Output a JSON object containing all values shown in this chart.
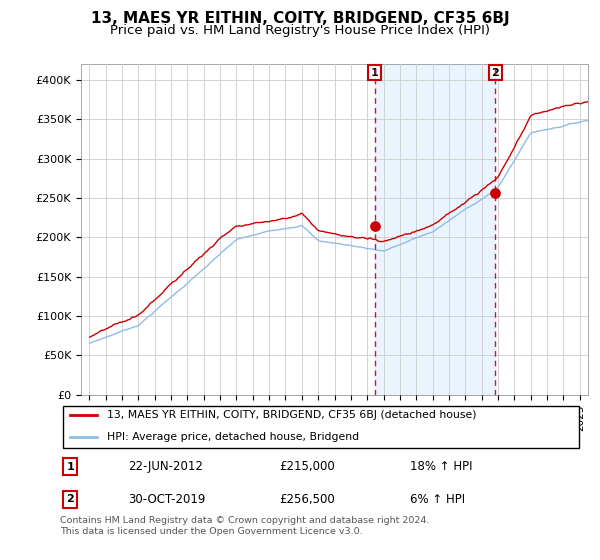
{
  "title": "13, MAES YR EITHIN, COITY, BRIDGEND, CF35 6BJ",
  "subtitle": "Price paid vs. HM Land Registry's House Price Index (HPI)",
  "ylim": [
    0,
    420000
  ],
  "yticks": [
    0,
    50000,
    100000,
    150000,
    200000,
    250000,
    300000,
    350000,
    400000
  ],
  "ytick_labels": [
    "£0",
    "£50K",
    "£100K",
    "£150K",
    "£200K",
    "£250K",
    "£300K",
    "£350K",
    "£400K"
  ],
  "background_color": "#ffffff",
  "plot_bg_color": "#ffffff",
  "grid_color": "#cccccc",
  "hpi_color": "#90bce8",
  "hpi_fill_color": "#ddeeff",
  "price_color": "#cc0000",
  "vline_color": "#cc0000",
  "sale1_x": 2012.46,
  "sale1_price": 215000,
  "sale1_date": "22-JUN-2012",
  "sale1_label": "18% ↑ HPI",
  "sale2_x": 2019.83,
  "sale2_price": 256500,
  "sale2_date": "30-OCT-2019",
  "sale2_label": "6% ↑ HPI",
  "legend_line1": "13, MAES YR EITHIN, COITY, BRIDGEND, CF35 6BJ (detached house)",
  "legend_line2": "HPI: Average price, detached house, Bridgend",
  "footnote": "Contains HM Land Registry data © Crown copyright and database right 2024.\nThis data is licensed under the Open Government Licence v3.0.",
  "title_fontsize": 11,
  "subtitle_fontsize": 9.5
}
